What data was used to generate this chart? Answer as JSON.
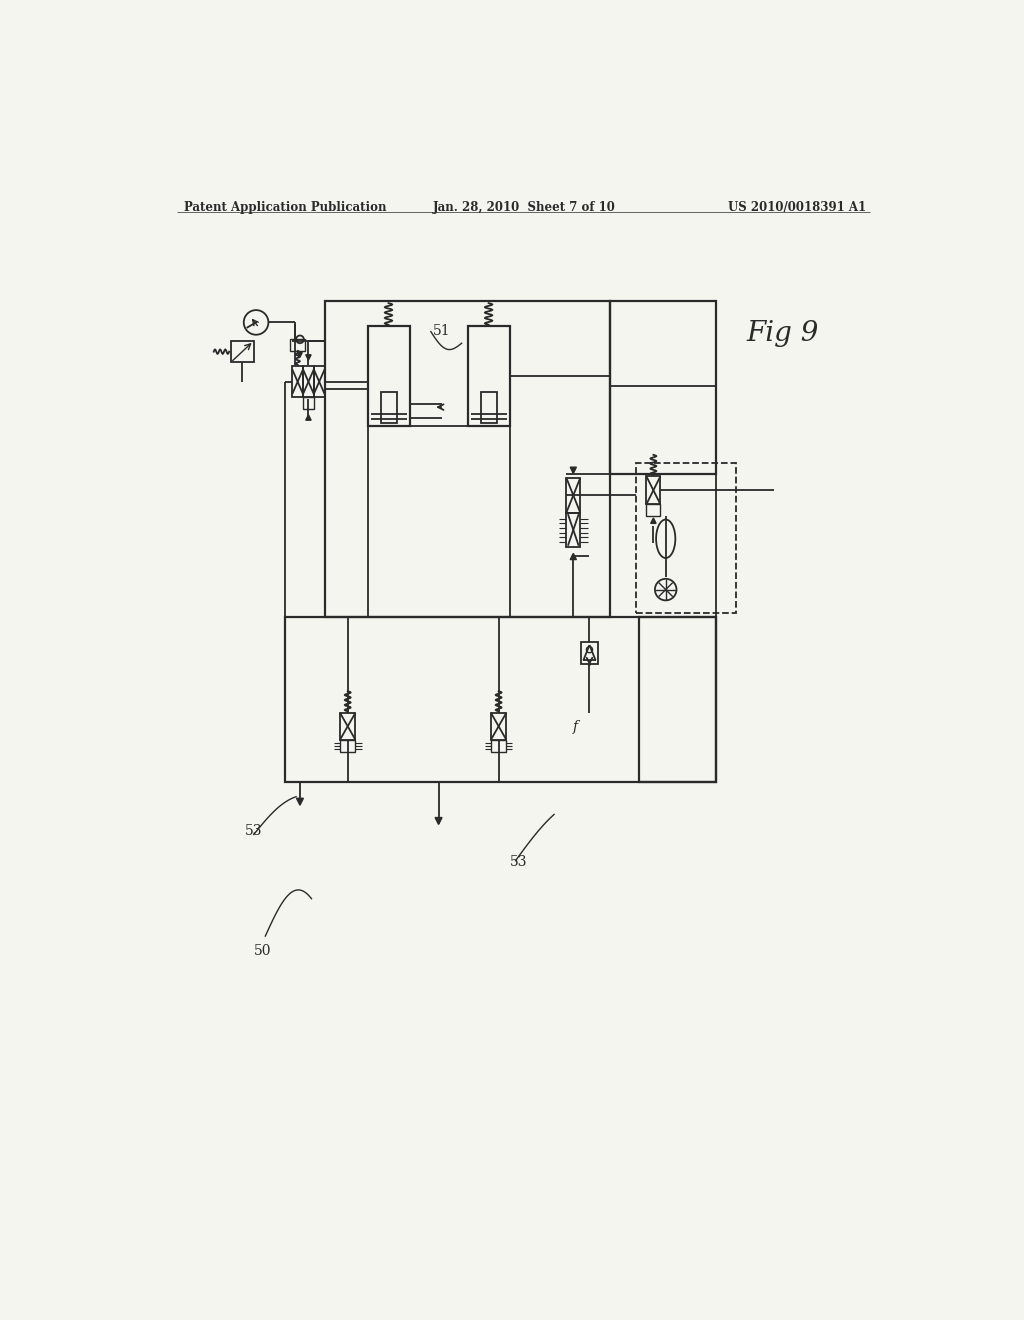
{
  "bg_color": "#f5f5f0",
  "line_color": "#2a2a2a",
  "header_left": "Patent Application Publication",
  "header_center": "Jan. 28, 2010  Sheet 7 of 10",
  "header_right": "US 2010/0018391 A1",
  "fig_label": "Fig 9",
  "label_51": "51",
  "label_53a": "53",
  "label_53b": "53",
  "label_50": "50",
  "label_f": "f"
}
